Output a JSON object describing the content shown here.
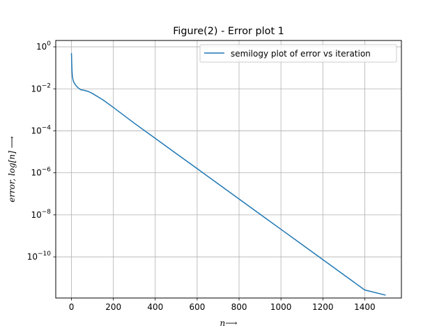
{
  "chart_data": {
    "type": "line",
    "title": "Figure(2) - Error plot 1",
    "xlabel": "n⟶",
    "ylabel": "error, log[n] ⟶",
    "xscale": "linear",
    "yscale": "log",
    "xlim": [
      -75,
      1575
    ],
    "ylim": [
      1.1e-12,
      2.0
    ],
    "x_ticks": [
      0,
      200,
      400,
      600,
      800,
      1000,
      1200,
      1400
    ],
    "x_tick_labels": [
      "0",
      "200",
      "400",
      "600",
      "800",
      "1000",
      "1200",
      "1400"
    ],
    "y_ticks": [
      1.0,
      0.01,
      0.0001,
      1e-06,
      1e-08,
      1e-10
    ],
    "y_tick_labels": [
      {
        "base": "10",
        "exp": "0"
      },
      {
        "base": "10",
        "exp": "−2"
      },
      {
        "base": "10",
        "exp": "−4"
      },
      {
        "base": "10",
        "exp": "−6"
      },
      {
        "base": "10",
        "exp": "−8"
      },
      {
        "base": "10",
        "exp": "−10"
      }
    ],
    "grid": true,
    "legend_position": "upper right",
    "series": [
      {
        "name": "semilogy plot of error vs iteration",
        "color": "#1f77b4",
        "x": [
          0,
          1,
          2,
          3,
          5,
          8,
          12,
          18,
          25,
          35,
          45,
          60,
          80,
          100,
          150,
          200,
          300,
          400,
          500,
          600,
          700,
          800,
          900,
          1000,
          1100,
          1200,
          1300,
          1400,
          1500
        ],
        "y": [
          0.5,
          0.2,
          0.1,
          0.06,
          0.035,
          0.025,
          0.02,
          0.016,
          0.013,
          0.0105,
          0.009,
          0.0085,
          0.0075,
          0.006,
          0.003,
          0.0013,
          0.00023,
          4.37e-05,
          8.3e-06,
          1.58e-06,
          3e-07,
          5.7e-08,
          1.08e-08,
          2.05e-09,
          3.9e-10,
          7.4e-11,
          1.4e-11,
          2.65e-12,
          1.5e-12
        ]
      }
    ]
  }
}
